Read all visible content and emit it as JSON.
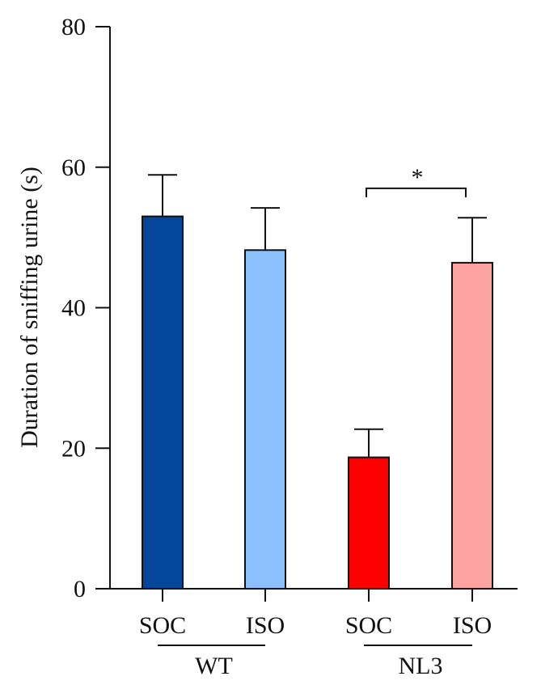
{
  "chart_data": {
    "type": "bar",
    "title": "",
    "xlabel": "",
    "ylabel": "Duration of sniffing urine (s)",
    "ylim": [
      0,
      80
    ],
    "yticks": [
      0,
      20,
      40,
      60,
      80
    ],
    "grid": false,
    "categories": [
      "SOC",
      "ISO",
      "SOC",
      "ISO"
    ],
    "groups": [
      {
        "label": "WT",
        "categories": [
          0,
          1
        ]
      },
      {
        "label": "NL3",
        "categories": [
          2,
          3
        ]
      }
    ],
    "values": [
      53,
      48.2,
      18.7,
      46.4
    ],
    "errors": [
      5.9,
      6.0,
      4.0,
      6.4
    ],
    "colors": [
      "#04469a",
      "#8cc0fd",
      "#ff0000",
      "#fca3a2"
    ],
    "significance": [
      {
        "from": 2,
        "to": 3,
        "label": "*",
        "y": 57
      }
    ]
  }
}
